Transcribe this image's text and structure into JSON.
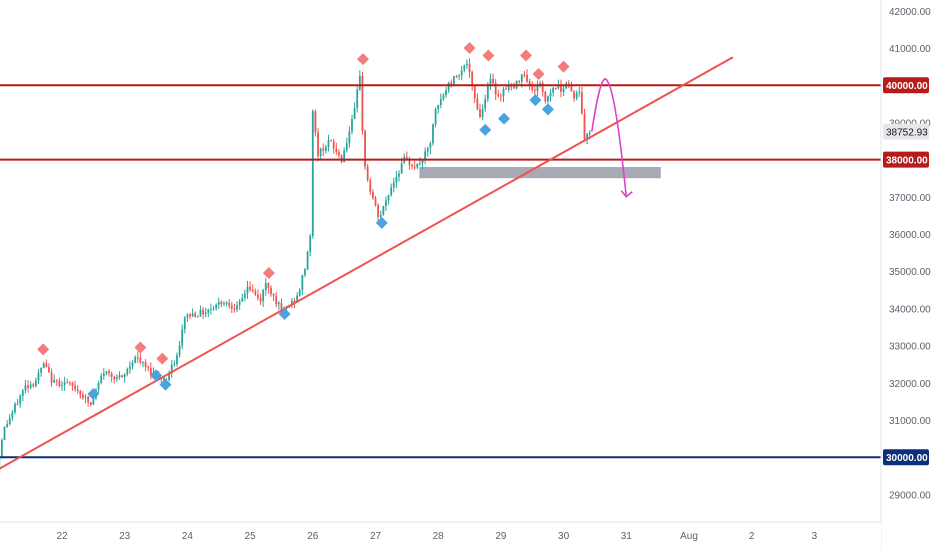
{
  "chart_data": {
    "type": "candlestick",
    "title": "",
    "xlabel": "",
    "ylabel": "",
    "ylim": [
      28150,
      42300
    ],
    "x_ticks": [
      "22",
      "23",
      "24",
      "25",
      "26",
      "27",
      "28",
      "29",
      "30",
      "31",
      "Aug",
      "2",
      "3"
    ],
    "y_ticks": [
      "29000.00",
      "31000.00",
      "32000.00",
      "33000.00",
      "34000.00",
      "35000.00",
      "36000.00",
      "37000.00",
      "39000.00",
      "41000.00",
      "42000.00"
    ],
    "price_levels": [
      {
        "value": 40000,
        "label": "40000.00",
        "color": "#b71c1c"
      },
      {
        "value": 38000,
        "label": "38000.00",
        "color": "#b71c1c"
      },
      {
        "value": 30000,
        "label": "30000.00",
        "color": "#0d2f7a"
      }
    ],
    "current_price": {
      "value": 38752.93,
      "label": "38752.93"
    },
    "price_path": [
      [
        21.0,
        29600
      ],
      [
        21.1,
        30700
      ],
      [
        21.25,
        31200
      ],
      [
        21.45,
        31900
      ],
      [
        21.6,
        32000
      ],
      [
        21.75,
        32500
      ],
      [
        21.9,
        32000
      ],
      [
        22.1,
        32000
      ],
      [
        22.3,
        31800
      ],
      [
        22.5,
        31400
      ],
      [
        22.7,
        32300
      ],
      [
        23.0,
        32100
      ],
      [
        23.2,
        32700
      ],
      [
        23.45,
        32300
      ],
      [
        23.7,
        32050
      ],
      [
        23.9,
        32800
      ],
      [
        24.0,
        33800
      ],
      [
        24.3,
        33900
      ],
      [
        24.6,
        34200
      ],
      [
        24.85,
        34000
      ],
      [
        25.0,
        34600
      ],
      [
        25.2,
        34200
      ],
      [
        25.3,
        34700
      ],
      [
        25.55,
        33900
      ],
      [
        25.8,
        34300
      ],
      [
        25.93,
        35200
      ],
      [
        26.0,
        36000
      ],
      [
        26.05,
        39900
      ],
      [
        26.1,
        38100
      ],
      [
        26.3,
        38500
      ],
      [
        26.5,
        38000
      ],
      [
        26.7,
        39200
      ],
      [
        26.8,
        40400
      ],
      [
        26.85,
        38000
      ],
      [
        26.95,
        37200
      ],
      [
        27.1,
        36400
      ],
      [
        27.3,
        37300
      ],
      [
        27.5,
        38000
      ],
      [
        27.7,
        37800
      ],
      [
        27.9,
        38300
      ],
      [
        28.0,
        39300
      ],
      [
        28.2,
        40000
      ],
      [
        28.35,
        40300
      ],
      [
        28.5,
        40600
      ],
      [
        28.6,
        39800
      ],
      [
        28.72,
        39100
      ],
      [
        28.85,
        40200
      ],
      [
        29.0,
        39700
      ],
      [
        29.15,
        40000
      ],
      [
        29.25,
        39900
      ],
      [
        29.4,
        40400
      ],
      [
        29.55,
        39800
      ],
      [
        29.65,
        40100
      ],
      [
        29.75,
        39600
      ],
      [
        29.9,
        40000
      ],
      [
        30.0,
        39900
      ],
      [
        30.1,
        40100
      ],
      [
        30.2,
        39700
      ],
      [
        30.3,
        39800
      ],
      [
        30.38,
        38500
      ],
      [
        30.45,
        38752
      ]
    ],
    "series": [
      {
        "name": "",
        "type": "trendline",
        "color": "#ef5350",
        "points": [
          [
            20.8,
            29500
          ],
          [
            32.7,
            40750
          ]
        ]
      },
      {
        "name": "",
        "type": "projection",
        "color": "#e040c8",
        "points": [
          [
            30.45,
            38752
          ],
          [
            30.7,
            40100
          ],
          [
            31.0,
            37000
          ]
        ]
      }
    ],
    "shaded_zone": {
      "x_range": [
        27.7,
        31.55
      ],
      "y_range": [
        37500,
        37800
      ],
      "color": "#a9a9b6"
    },
    "pivot_highs": [
      [
        21.7,
        32900
      ],
      [
        23.25,
        32950
      ],
      [
        23.6,
        32650
      ],
      [
        25.3,
        34950
      ],
      [
        26.8,
        40700
      ],
      [
        28.5,
        41000
      ],
      [
        28.8,
        40800
      ],
      [
        29.4,
        40800
      ],
      [
        29.6,
        40300
      ],
      [
        30.0,
        40500
      ]
    ],
    "pivot_lows": [
      [
        22.5,
        31700
      ],
      [
        23.5,
        32200
      ],
      [
        23.65,
        31950
      ],
      [
        25.55,
        33850
      ],
      [
        27.1,
        36300
      ],
      [
        28.75,
        38800
      ],
      [
        29.05,
        39100
      ],
      [
        29.55,
        39600
      ],
      [
        29.75,
        39350
      ]
    ],
    "grid": false,
    "legend": "none"
  }
}
